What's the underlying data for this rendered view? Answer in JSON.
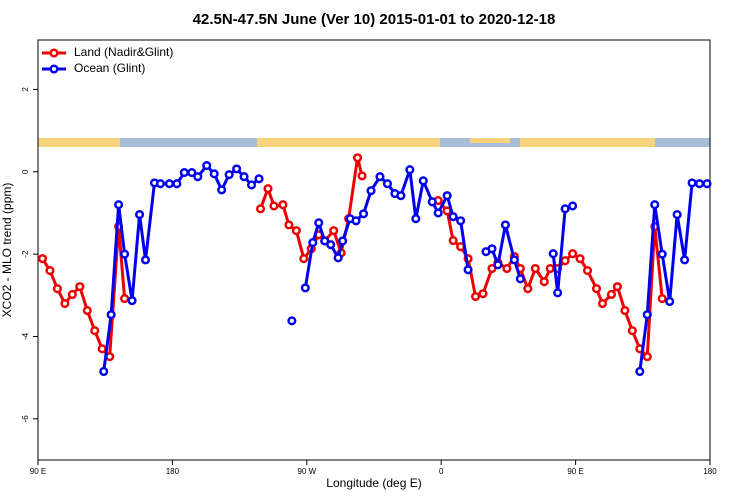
{
  "chart_data": {
    "type": "line",
    "title": "42.5N-47.5N June (Ver 10)   2015-01-01 to 2020-12-18",
    "x_label": "Longitude (deg E)",
    "y_label": "XCO2 - MLO trend (ppm)",
    "xlim": [
      90,
      540
    ],
    "ylim": [
      -7,
      3.2
    ],
    "xticks": [
      {
        "value": 90,
        "label": "90 E"
      },
      {
        "value": 180,
        "label": "180"
      },
      {
        "value": 270,
        "label": "90 W"
      },
      {
        "value": 360,
        "label": "0"
      },
      {
        "value": 450,
        "label": "90 E"
      },
      {
        "value": 540,
        "label": "180"
      }
    ],
    "yticks": [
      -6,
      -4,
      -2,
      0,
      2
    ],
    "legend": "top-left",
    "series": [
      {
        "name": "Land (Nadir&Glint)",
        "color": "#ee0000",
        "x": [
          93,
          98,
          103,
          108,
          113,
          118,
          123,
          128,
          133,
          138,
          144,
          148,
          null,
          239,
          244,
          248,
          254,
          258,
          263,
          268,
          273,
          278,
          282,
          288,
          293,
          298,
          304,
          307,
          null,
          358,
          364,
          368,
          373,
          378,
          383,
          388,
          394,
          398,
          404,
          409,
          413,
          418,
          423,
          429,
          433,
          438,
          443,
          448,
          453,
          458,
          464,
          468,
          474,
          478,
          483,
          488,
          493,
          498,
          503,
          508
        ],
        "values": [
          -2.11,
          -2.4,
          -2.84,
          -3.2,
          -2.98,
          -2.79,
          -3.37,
          -3.86,
          -4.3,
          -4.49,
          -1.33,
          -3.08,
          null,
          -0.9,
          -0.41,
          -0.83,
          -0.8,
          -1.29,
          -1.43,
          -2.11,
          -1.87,
          -1.53,
          -1.68,
          -1.43,
          -1.97,
          -1.14,
          0.34,
          -0.1,
          null,
          -0.7,
          -0.95,
          -1.67,
          -1.82,
          -2.11,
          -3.03,
          -2.96,
          -2.35,
          -2.21,
          -2.35,
          -2.06,
          -2.35,
          -2.84,
          -2.35,
          -2.67,
          -2.35,
          -2.35,
          -2.16,
          -1.99,
          -2.11,
          -2.4,
          -2.84,
          -3.2,
          -2.98,
          -2.79,
          -3.37,
          -3.86,
          -4.3,
          -4.49,
          -1.33,
          -3.08
        ]
      },
      {
        "name": "Ocean (Glint)",
        "color": "#0000ee",
        "x": [
          134,
          139,
          144,
          148,
          153,
          158,
          162,
          168,
          172,
          178,
          183,
          188,
          193,
          197,
          203,
          208,
          213,
          218,
          223,
          228,
          233,
          238,
          null,
          260,
          null,
          269,
          274,
          278,
          282,
          286,
          291,
          294,
          299,
          303,
          308,
          313,
          319,
          324,
          329,
          333,
          339,
          343,
          348,
          354,
          358,
          364,
          368,
          373,
          378,
          null,
          390,
          394,
          398,
          403,
          409,
          413,
          null,
          435,
          438,
          443,
          448,
          null,
          493,
          498,
          503,
          508,
          513,
          518,
          523,
          528,
          533,
          538
        ],
        "values": [
          -4.85,
          -3.47,
          -0.8,
          -2.0,
          -3.13,
          -1.04,
          -2.14,
          -0.27,
          -0.29,
          -0.29,
          -0.29,
          -0.02,
          -0.02,
          -0.12,
          0.15,
          -0.05,
          -0.44,
          -0.07,
          0.07,
          -0.12,
          -0.32,
          -0.17,
          null,
          -3.62,
          null,
          -2.82,
          -1.72,
          -1.24,
          -1.68,
          -1.77,
          -2.09,
          -1.68,
          -1.14,
          -1.19,
          -1.02,
          -0.46,
          -0.12,
          -0.29,
          -0.53,
          -0.58,
          0.05,
          -1.14,
          -0.22,
          -0.73,
          -1.0,
          -0.58,
          -1.09,
          -1.19,
          -2.38,
          null,
          -1.94,
          -1.87,
          -2.26,
          -1.29,
          -2.14,
          -2.6,
          null,
          -1.99,
          -2.94,
          -0.9,
          -0.83,
          null,
          -4.85,
          -3.47,
          -0.8,
          -2.0,
          -3.15,
          -1.04,
          -2.14,
          -0.27,
          -0.29,
          -0.29
        ]
      }
    ]
  }
}
